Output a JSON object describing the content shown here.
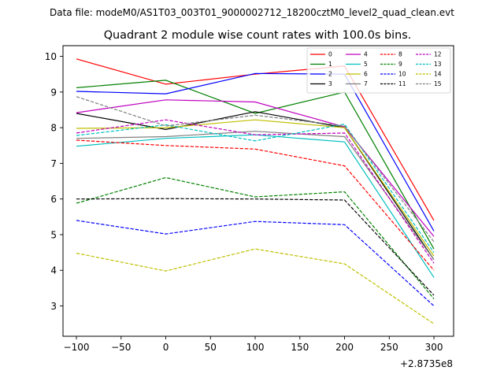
{
  "suptitle": "Data file: modeM0/AS1T03_003T01_9000002712_18200cztM0_level2_quad_clean.evt",
  "chart_data": {
    "type": "line",
    "title": "Quadrant 2 module wise count rates with 100.0s bins.",
    "xlabel": "",
    "ylabel": "",
    "x_offset_label": "+2.8735e8",
    "x": [
      -100,
      0,
      100,
      200,
      300
    ],
    "xlim": [
      -115,
      322
    ],
    "ylim": [
      2.15,
      10.3
    ],
    "xticks": [
      -100,
      -50,
      0,
      50,
      100,
      150,
      200,
      250,
      300
    ],
    "xtick_labels": [
      "−100",
      "−50",
      "0",
      "50",
      "100",
      "150",
      "200",
      "250",
      "300"
    ],
    "yticks": [
      3,
      4,
      5,
      6,
      7,
      8,
      9,
      10
    ],
    "ytick_labels": [
      "3",
      "4",
      "5",
      "6",
      "7",
      "8",
      "9",
      "10"
    ],
    "grid": false,
    "legend_position": "top-right",
    "legend_columns": 4,
    "series": [
      {
        "name": "0",
        "color": "#ff0000",
        "dash": "solid",
        "x": [
          -100,
          0,
          100,
          200,
          300
        ],
        "values": [
          9.93,
          9.22,
          9.5,
          9.73,
          5.4
        ]
      },
      {
        "name": "1",
        "color": "#008000",
        "dash": "solid",
        "x": [
          -100,
          0,
          100,
          200,
          300
        ],
        "values": [
          9.12,
          9.33,
          8.4,
          9.0,
          4.6
        ]
      },
      {
        "name": "2",
        "color": "#0000ff",
        "dash": "solid",
        "x": [
          -100,
          0,
          100,
          200,
          300
        ],
        "values": [
          9.02,
          8.95,
          9.52,
          9.5,
          5.1
        ]
      },
      {
        "name": "3",
        "color": "#000000",
        "dash": "solid",
        "x": [
          -100,
          0,
          100,
          200,
          300
        ],
        "values": [
          8.4,
          7.95,
          8.45,
          8.0,
          4.3
        ]
      },
      {
        "name": "4",
        "color": "#c000c0",
        "dash": "solid",
        "x": [
          -100,
          0,
          100,
          200,
          300
        ],
        "values": [
          8.42,
          8.78,
          8.72,
          8.02,
          4.95
        ]
      },
      {
        "name": "5",
        "color": "#00bfbf",
        "dash": "solid",
        "x": [
          -100,
          0,
          100,
          200,
          300
        ],
        "values": [
          7.48,
          7.7,
          7.8,
          7.6,
          3.8
        ]
      },
      {
        "name": "6",
        "color": "#bfbf00",
        "dash": "solid",
        "x": [
          -100,
          0,
          100,
          200,
          300
        ],
        "values": [
          7.98,
          8.0,
          8.22,
          8.0,
          4.4
        ]
      },
      {
        "name": "7",
        "color": "#808080",
        "dash": "solid",
        "x": [
          -100,
          0,
          100,
          200,
          300
        ],
        "values": [
          7.7,
          7.75,
          7.9,
          7.75,
          4.3
        ]
      },
      {
        "name": "8",
        "color": "#ff0000",
        "dash": "dashed",
        "x": [
          -100,
          0,
          100,
          200,
          300
        ],
        "values": [
          7.65,
          7.5,
          7.4,
          6.93,
          4.0
        ]
      },
      {
        "name": "9",
        "color": "#008000",
        "dash": "dashed",
        "x": [
          -100,
          0,
          100,
          200,
          300
        ],
        "values": [
          5.88,
          6.6,
          6.06,
          6.2,
          3.2
        ]
      },
      {
        "name": "10",
        "color": "#0000ff",
        "dash": "dashed",
        "x": [
          -100,
          0,
          100,
          200,
          300
        ],
        "values": [
          5.4,
          5.02,
          5.37,
          5.28,
          3.0
        ]
      },
      {
        "name": "11",
        "color": "#000000",
        "dash": "dashed",
        "x": [
          -100,
          0,
          100,
          200,
          300
        ],
        "values": [
          6.0,
          6.01,
          6.0,
          5.97,
          3.3
        ]
      },
      {
        "name": "12",
        "color": "#c000c0",
        "dash": "dashed",
        "x": [
          -100,
          0,
          100,
          200,
          300
        ],
        "values": [
          7.85,
          8.22,
          7.8,
          7.85,
          4.2
        ]
      },
      {
        "name": "13",
        "color": "#00bfbf",
        "dash": "dashed",
        "x": [
          -100,
          0,
          100,
          200,
          300
        ],
        "values": [
          7.78,
          8.08,
          7.63,
          8.1,
          4.5
        ]
      },
      {
        "name": "14",
        "color": "#bfbf00",
        "dash": "dashed",
        "x": [
          -100,
          0,
          100,
          200,
          300
        ],
        "values": [
          4.48,
          3.98,
          4.6,
          4.18,
          2.5
        ]
      },
      {
        "name": "15",
        "color": "#808080",
        "dash": "dashed",
        "x": [
          -100,
          0,
          100,
          200,
          300
        ],
        "values": [
          8.87,
          8.05,
          8.35,
          8.05,
          4.8
        ]
      }
    ]
  }
}
